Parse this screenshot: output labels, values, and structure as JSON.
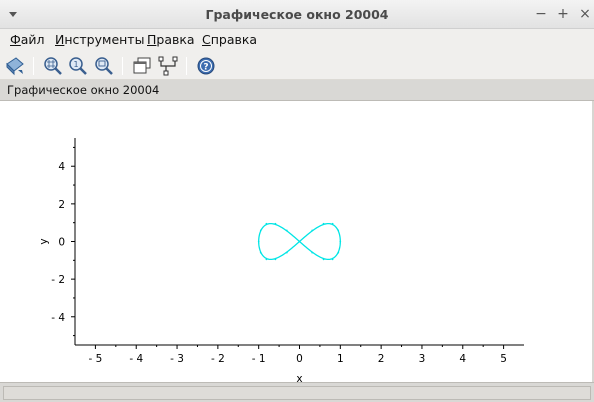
{
  "window": {
    "title": "Графическое окно 20004",
    "controls": {
      "minimize": "−",
      "maximize": "+",
      "close": "×"
    }
  },
  "menu": {
    "items": [
      {
        "first": "Ф",
        "rest": "айл"
      },
      {
        "first": "И",
        "rest": "нструменты"
      },
      {
        "first": "П",
        "rest": "равка"
      },
      {
        "first": "С",
        "rest": "правка"
      }
    ]
  },
  "toolbar": {
    "icons": [
      "rotate-icon",
      "zoom-grid-icon",
      "zoom-in-icon",
      "zoom-region-icon",
      "windows-icon",
      "datatip-icon",
      "help-icon"
    ]
  },
  "infobar": {
    "text": "Графическое окно 20004"
  },
  "chart_data": {
    "type": "line",
    "title": "",
    "xlabel": "x",
    "ylabel": "y",
    "xlim": [
      -5.5,
      5.5
    ],
    "ylim": [
      -5.5,
      5.5
    ],
    "xticks": [
      -5,
      -4,
      -3,
      -2,
      -1,
      0,
      1,
      2,
      3,
      4,
      5
    ],
    "yticks": [
      -4,
      -2,
      0,
      2,
      4
    ],
    "grid": false,
    "series": [
      {
        "color": "#00e5e5",
        "x": [
          0,
          0.31,
          0.59,
          0.81,
          0.95,
          1.0,
          0.95,
          0.81,
          0.59,
          0.31,
          0,
          -0.31,
          -0.59,
          -0.81,
          -0.95,
          -1.0,
          -0.95,
          -0.81,
          -0.59,
          -0.31,
          0,
          0.31,
          0.59,
          0.81,
          0.95,
          1.0,
          0.95,
          0.81,
          0.59,
          0.31,
          0,
          -0.31,
          -0.59,
          -0.81,
          -0.95,
          -1.0,
          -0.95,
          -0.81,
          -0.59,
          -0.31,
          0
        ],
        "y": [
          0,
          0.59,
          0.95,
          0.95,
          0.59,
          0,
          -0.59,
          -0.95,
          -0.95,
          -0.59,
          0,
          0.59,
          0.95,
          0.95,
          0.59,
          0,
          -0.59,
          -0.95,
          -0.95,
          -0.59,
          0,
          0.59,
          0.95,
          0.95,
          0.59,
          0,
          -0.59,
          -0.95,
          -0.95,
          -0.59,
          0,
          0.59,
          0.95,
          0.95,
          0.59,
          0,
          -0.59,
          -0.95,
          -0.95,
          -0.59,
          0
        ]
      }
    ]
  }
}
